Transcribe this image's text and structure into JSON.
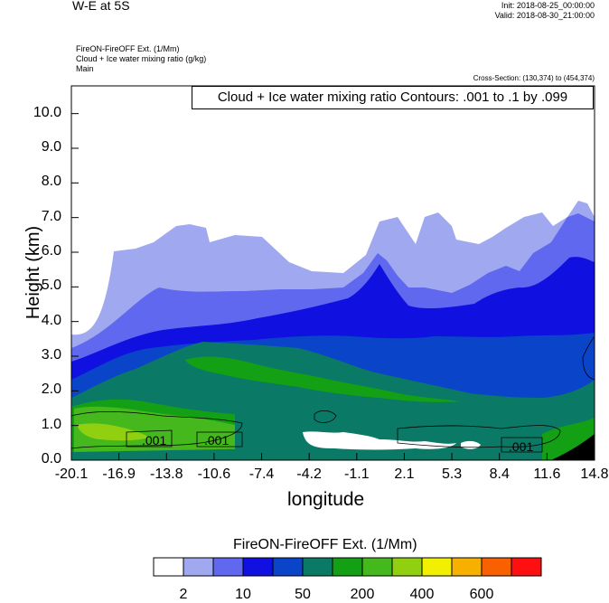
{
  "header": {
    "title": "W-E at 5S",
    "init": "Init: 2018-08-25_00:00:00",
    "valid": "Valid: 2018-08-30_21:00:00",
    "line1": "FireON-FireOFF Ext.    (1/Mm)",
    "line2": "Cloud + Ice water mixing ratio    (g/kg)",
    "line3": "Main",
    "cross_section": "Cross-Section: (130,374) to (454,374)"
  },
  "chart_data": {
    "type": "heatmap",
    "xlabel": "longitude",
    "ylabel": "Height (km)",
    "contour_note": "Cloud + Ice water mixing ratio Contours: .001 to .1 by .099",
    "contour_labels": [
      ".001",
      ".001",
      ".001"
    ],
    "x_ticks": [
      "-20.1",
      "-16.9",
      "-13.8",
      "-10.6",
      "-7.4",
      "-4.2",
      "-1.1",
      "2.1",
      "5.3",
      "8.4",
      "11.6",
      "14.8"
    ],
    "y_ticks": [
      "0.0",
      "1.0",
      "2.0",
      "3.0",
      "4.0",
      "5.0",
      "6.0",
      "7.0",
      "8.0",
      "9.0",
      "10.0"
    ],
    "ylim": [
      0,
      10.8
    ],
    "xlim": [
      -20.1,
      14.8
    ],
    "colorbar": {
      "title": "FireON-FireOFF Ext.  (1/Mm)",
      "labels": [
        "2",
        "10",
        "50",
        "200",
        "400",
        "600"
      ],
      "colors": [
        "#ffffff",
        "#a0a8f0",
        "#6068f0",
        "#1010e0",
        "#0a44c8",
        "#0a7a66",
        "#14a014",
        "#44b81c",
        "#90d010",
        "#f0f000",
        "#f8b000",
        "#f86000",
        "#ff1010"
      ]
    }
  }
}
